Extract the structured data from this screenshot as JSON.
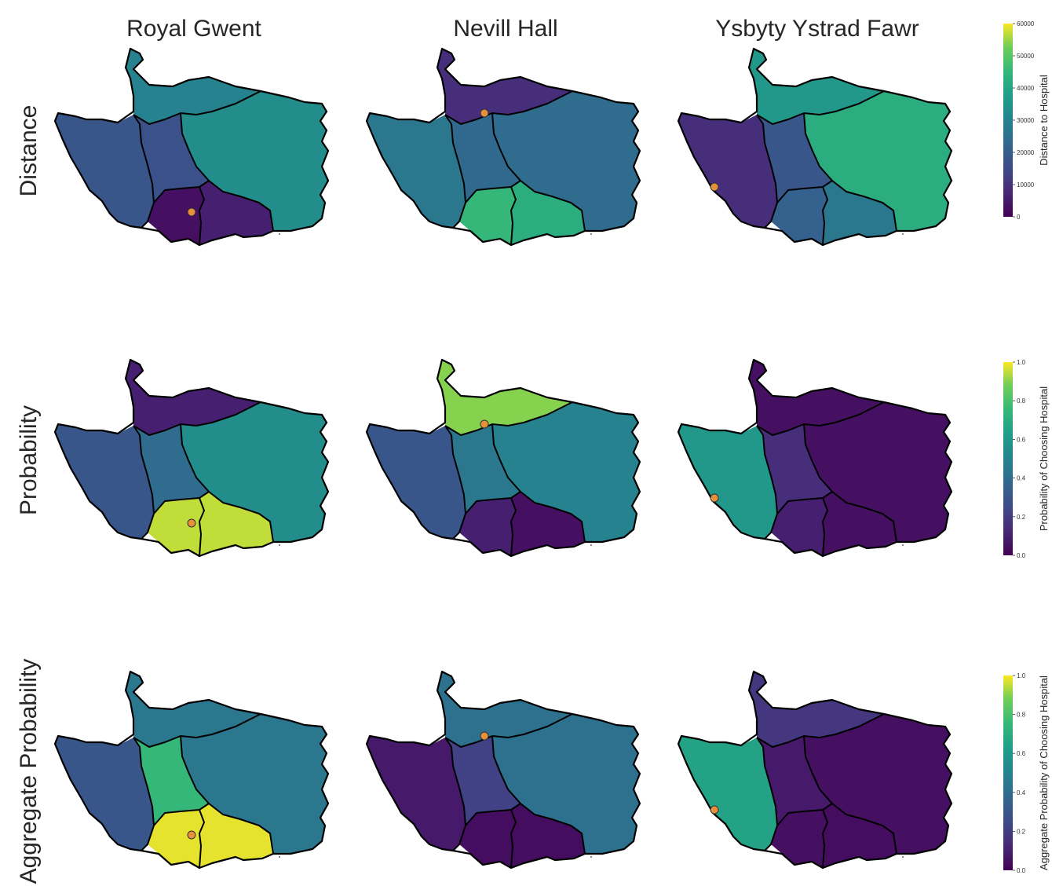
{
  "columns": [
    "Royal Gwent",
    "Nevill Hall",
    "Ysbyty Ystrad Fawr"
  ],
  "rows": [
    {
      "label": "Distance",
      "colorbar": {
        "label": "Distance to Hospital",
        "ticks": [
          "60000",
          "50000",
          "40000",
          "30000",
          "20000",
          "10000",
          "0"
        ],
        "min": 0,
        "max": 60000
      },
      "panels": [
        {
          "hospital": "Royal Gwent",
          "regions": {
            "west": 0.3,
            "north": 0.5,
            "east": 0.55,
            "central": 0.28,
            "south_w": 0.05,
            "south_e": 0.1
          }
        },
        {
          "hospital": "Nevill Hall",
          "regions": {
            "west": 0.45,
            "north": 0.15,
            "east": 0.4,
            "central": 0.38,
            "south_w": 0.75,
            "south_e": 0.7
          }
        },
        {
          "hospital": "Ysbyty Ystrad Fawr",
          "regions": {
            "west": 0.15,
            "north": 0.6,
            "east": 0.7,
            "central": 0.3,
            "south_w": 0.35,
            "south_e": 0.45
          }
        }
      ]
    },
    {
      "label": "Probability",
      "colorbar": {
        "label": "Probability of Choosing Hospital",
        "ticks": [
          "1.0",
          "0.8",
          "0.6",
          "0.4",
          "0.2",
          "0.0"
        ],
        "min": 0,
        "max": 1
      },
      "panels": [
        {
          "hospital": "Royal Gwent",
          "regions": {
            "west": 0.3,
            "north": 0.1,
            "east": 0.55,
            "central": 0.4,
            "south_w": 0.95,
            "south_e": 0.95
          }
        },
        {
          "hospital": "Nevill Hall",
          "regions": {
            "west": 0.3,
            "north": 0.9,
            "east": 0.5,
            "central": 0.45,
            "south_w": 0.1,
            "south_e": 0.05
          }
        },
        {
          "hospital": "Ysbyty Ystrad Fawr",
          "regions": {
            "west": 0.6,
            "north": 0.05,
            "east": 0.05,
            "central": 0.15,
            "south_w": 0.1,
            "south_e": 0.05
          }
        }
      ]
    },
    {
      "label": "Aggregate Probability",
      "colorbar": {
        "label": "Aggregate Probability of Choosing Hospital",
        "ticks": [
          "1.0",
          "0.8",
          "0.6",
          "0.4",
          "0.2",
          "0.0"
        ],
        "min": 0,
        "max": 1
      },
      "panels": [
        {
          "hospital": "Royal Gwent",
          "regions": {
            "west": 0.3,
            "north": 0.45,
            "east": 0.45,
            "central": 0.75,
            "south_w": 0.98,
            "south_e": 0.98
          }
        },
        {
          "hospital": "Nevill Hall",
          "regions": {
            "west": 0.08,
            "north": 0.42,
            "east": 0.42,
            "central": 0.22,
            "south_w": 0.04,
            "south_e": 0.04
          }
        },
        {
          "hospital": "Ysbyty Ystrad Fawr",
          "regions": {
            "west": 0.65,
            "north": 0.18,
            "east": 0.05,
            "central": 0.08,
            "south_w": 0.05,
            "south_e": 0.04
          }
        }
      ]
    }
  ],
  "marker_color": "#e8913a"
}
